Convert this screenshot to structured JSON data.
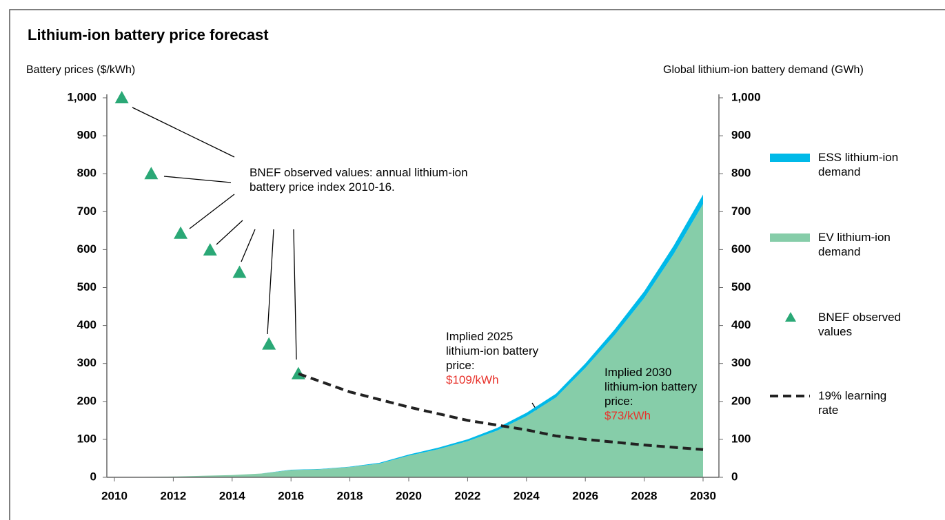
{
  "chart_data": {
    "type": "combo",
    "title": "Lithium-ion battery price forecast",
    "y_label": "Battery prices ($/kWh)",
    "y2_label": "Global lithium-ion battery demand (GWh)",
    "xlim": [
      2010,
      2030
    ],
    "xticks": [
      2010,
      2012,
      2014,
      2016,
      2018,
      2020,
      2022,
      2024,
      2026,
      2028,
      2030
    ],
    "ylim": [
      0,
      1000
    ],
    "yticks": [
      0,
      100,
      200,
      300,
      400,
      500,
      600,
      700,
      800,
      900,
      {
        "value": 1000,
        "label": "1,000"
      }
    ],
    "y2lim": [
      0,
      1000
    ],
    "y2ticks": [
      0,
      100,
      200,
      300,
      400,
      500,
      600,
      700,
      800,
      900,
      {
        "value": 1000,
        "label": "1,000"
      }
    ],
    "series": [
      {
        "name": "EV lithium-ion demand",
        "type": "area",
        "axis": "y2",
        "color": "#86cda9",
        "x": [
          2010,
          2011,
          2012,
          2013,
          2014,
          2015,
          2016,
          2017,
          2018,
          2019,
          2020,
          2021,
          2022,
          2023,
          2024,
          2025,
          2026,
          2027,
          2028,
          2029,
          2030
        ],
        "values": [
          0,
          1,
          2,
          4,
          6,
          10,
          19,
          21,
          27,
          36,
          57,
          74,
          95,
          123,
          161,
          210,
          288,
          375,
          472,
          588,
          720
        ]
      },
      {
        "name": "ESS lithium-ion demand",
        "type": "area",
        "axis": "y2",
        "color": "#00b9e8",
        "x": [
          2010,
          2011,
          2012,
          2013,
          2014,
          2015,
          2016,
          2017,
          2018,
          2019,
          2020,
          2021,
          2022,
          2023,
          2024,
          2025,
          2026,
          2027,
          2028,
          2029,
          2030
        ],
        "values": [
          0,
          0,
          0,
          0,
          0,
          0,
          1,
          1,
          1,
          2,
          3,
          4,
          5,
          7,
          9,
          10,
          12,
          15,
          18,
          22,
          25
        ]
      },
      {
        "name": "BNEF observed values",
        "type": "scatter",
        "color": "#2aa876",
        "x": [
          2010.25,
          2011.25,
          2012.25,
          2013.25,
          2014.25,
          2015.25,
          2016.25
        ],
        "values": [
          1000,
          800,
          643,
          599,
          540,
          351,
          273
        ]
      },
      {
        "name": "19% learning rate",
        "type": "line",
        "color": "#222222",
        "x": [
          2016.25,
          2018,
          2020,
          2022,
          2024,
          2025,
          2026,
          2028,
          2030
        ],
        "values": [
          273,
          225,
          185,
          150,
          125,
          109,
          100,
          85,
          73
        ]
      }
    ],
    "annotations": [
      {
        "text": "BNEF observed values: annual lithium-ion battery price index 2010-16."
      },
      {
        "text": "Implied 2025 lithium-ion battery price:",
        "highlight": "$109/kWh"
      },
      {
        "text": "Implied 2030 lithium-ion battery price:",
        "highlight": "$73/kWh"
      }
    ]
  }
}
